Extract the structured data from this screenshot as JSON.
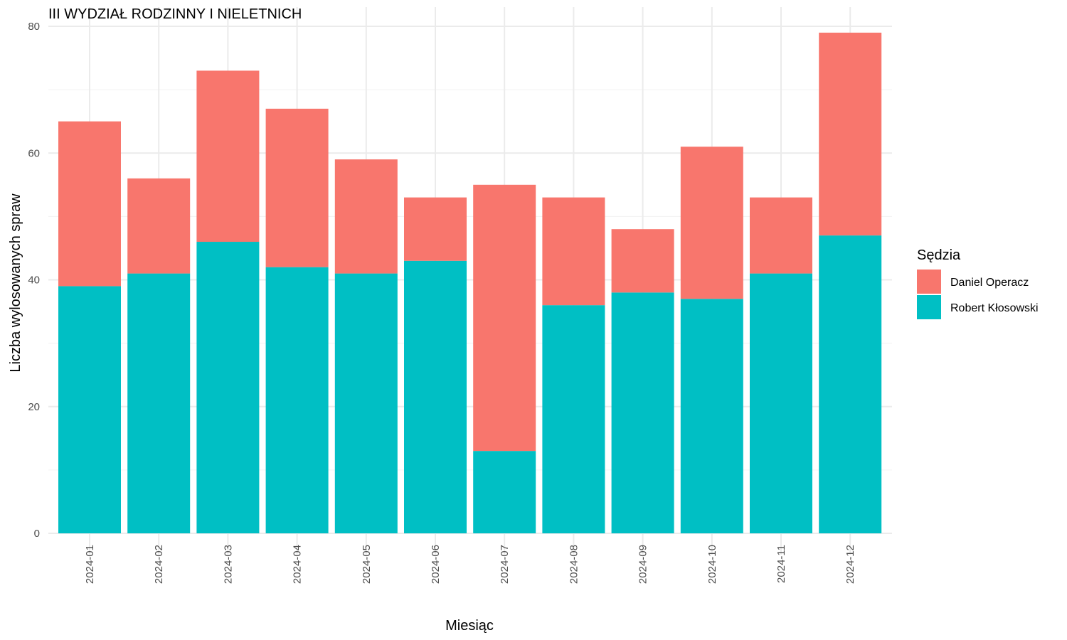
{
  "chart_data": {
    "type": "bar",
    "stacked": true,
    "title": "III WYDZIAŁ RODZINNY I NIELETNICH",
    "xlabel": "Miesiąc",
    "ylabel": "Liczba wylosowanych spraw",
    "categories": [
      "2024-01",
      "2024-02",
      "2024-03",
      "2024-04",
      "2024-05",
      "2024-06",
      "2024-07",
      "2024-08",
      "2024-09",
      "2024-10",
      "2024-11",
      "2024-12"
    ],
    "series": [
      {
        "name": "Robert Kłosowski",
        "color": "#00BFC4",
        "values": [
          39,
          41,
          46,
          42,
          41,
          43,
          13,
          36,
          38,
          37,
          41,
          47
        ]
      },
      {
        "name": "Daniel Operacz",
        "color": "#F8766D",
        "values": [
          26,
          15,
          27,
          25,
          18,
          10,
          42,
          17,
          10,
          24,
          12,
          32
        ]
      }
    ],
    "ylim": [
      0,
      80
    ],
    "yticks": [
      0,
      20,
      40,
      60,
      80
    ],
    "grid": true,
    "legend": {
      "title": "Sędzia",
      "position": "right",
      "order": [
        "Daniel Operacz",
        "Robert Kłosowski"
      ]
    }
  }
}
